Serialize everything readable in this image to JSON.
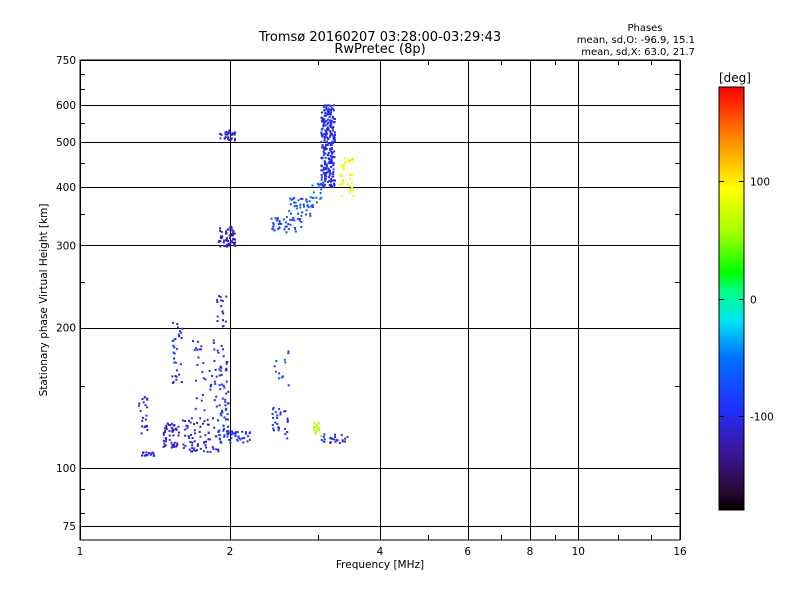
{
  "header": {
    "title_line1": "Tromsø 20160207 03:28:00-03:29:43",
    "title_line2": "RwPretec (8p)"
  },
  "stats": {
    "label": "Phases",
    "o_line": "mean, sd,O: -96.9, 15.1",
    "x_line": "mean, sd,X:  63.0, 21.7"
  },
  "colorbar": {
    "unit_label": "[deg]",
    "range": [
      -180,
      180
    ],
    "ticks": [
      "100",
      "0",
      "-100"
    ],
    "tick_values": [
      100,
      0,
      -100
    ]
  },
  "chart_data": {
    "type": "scatter",
    "xlabel": "Frequency [MHz]",
    "ylabel": "Stationary phase Virtual Height [km]",
    "xscale": "log",
    "yscale": "log",
    "xlim": [
      1,
      16
    ],
    "ylim": [
      70,
      750
    ],
    "x_ticks": [
      1,
      2,
      4,
      6,
      8,
      10,
      16
    ],
    "x_tick_labels": [
      "1",
      "2",
      "4",
      "6",
      "8",
      "10",
      "16"
    ],
    "y_ticks": [
      75,
      100,
      200,
      300,
      400,
      500,
      600,
      750
    ],
    "y_tick_labels": [
      "75",
      "100",
      "200",
      "300",
      "400",
      "500",
      "600",
      "750"
    ],
    "grid": true,
    "color_by": "phase [deg]",
    "clusters": [
      {
        "phase": -105,
        "x": [
          1.33,
          1.41
        ],
        "y": [
          106,
          108
        ],
        "n": 18
      },
      {
        "phase": -105,
        "x": [
          1.31,
          1.37
        ],
        "y": [
          118,
          142
        ],
        "n": 22
      },
      {
        "phase": -110,
        "x": [
          1.47,
          1.58
        ],
        "y": [
          110,
          125
        ],
        "n": 50
      },
      {
        "phase": -100,
        "x": [
          1.53,
          1.61
        ],
        "y": [
          150,
          205
        ],
        "n": 30
      },
      {
        "phase": -105,
        "x": [
          1.6,
          1.9
        ],
        "y": [
          108,
          128
        ],
        "n": 70
      },
      {
        "phase": -100,
        "x": [
          1.68,
          1.98
        ],
        "y": [
          130,
          190
        ],
        "n": 50
      },
      {
        "phase": -105,
        "x": [
          1.88,
          1.97
        ],
        "y": [
          200,
          235
        ],
        "n": 18
      },
      {
        "phase": -100,
        "x": [
          1.9,
          2.2
        ],
        "y": [
          113,
          120
        ],
        "n": 45
      },
      {
        "phase": -100,
        "x": [
          1.9,
          1.99
        ],
        "y": [
          120,
          170
        ],
        "n": 35
      },
      {
        "phase": -115,
        "x": [
          1.9,
          2.05
        ],
        "y": [
          298,
          330
        ],
        "n": 60
      },
      {
        "phase": -110,
        "x": [
          1.9,
          2.05
        ],
        "y": [
          500,
          530
        ],
        "n": 30
      },
      {
        "phase": -95,
        "x": [
          2.42,
          2.62
        ],
        "y": [
          115,
          135
        ],
        "n": 28
      },
      {
        "phase": -80,
        "x": [
          2.45,
          2.65
        ],
        "y": [
          150,
          180
        ],
        "n": 12
      },
      {
        "phase": -80,
        "x": [
          2.42,
          2.8
        ],
        "y": [
          320,
          345
        ],
        "n": 40
      },
      {
        "phase": -70,
        "x": [
          2.6,
          2.95
        ],
        "y": [
          345,
          380
        ],
        "n": 40
      },
      {
        "phase": -60,
        "x": [
          2.85,
          3.05
        ],
        "y": [
          370,
          410
        ],
        "n": 15
      },
      {
        "phase": -100,
        "x": [
          3.05,
          3.25
        ],
        "y": [
          400,
          600
        ],
        "n": 260
      },
      {
        "phase": 95,
        "x": [
          3.3,
          3.55
        ],
        "y": [
          380,
          470
        ],
        "n": 35
      },
      {
        "phase": 60,
        "x": [
          2.95,
          3.05
        ],
        "y": [
          117,
          125
        ],
        "n": 16
      },
      {
        "phase": -105,
        "x": [
          3.05,
          3.45
        ],
        "y": [
          113,
          118
        ],
        "n": 25
      }
    ]
  }
}
